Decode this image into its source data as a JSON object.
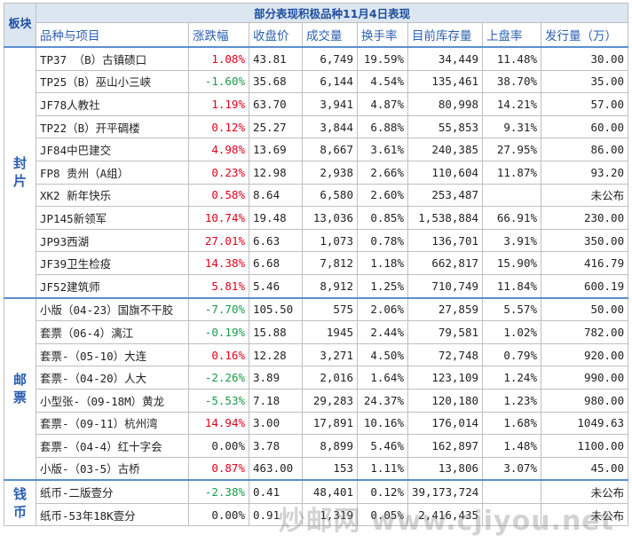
{
  "title": "部分表现积极品种11月4日表现",
  "header": {
    "group": "板块",
    "columns": [
      "品种与项目",
      "涨跌幅",
      "收盘价",
      "成交量",
      "换手率",
      "目前库存量",
      "上盘率",
      "发行量（万）"
    ]
  },
  "groups": [
    {
      "name": "封片",
      "rows": [
        [
          "TP37 （B）古镇碛口",
          "1.08%",
          "43.81",
          "6,749",
          "19.59%",
          "34,449",
          "11.48%",
          "30.00"
        ],
        [
          "TP25（B）巫山小三峡",
          "-1.60%",
          "35.68",
          "6,144",
          "4.54%",
          "135,461",
          "38.70%",
          "35.00"
        ],
        [
          "JF78人教社",
          "1.19%",
          "63.70",
          "3,941",
          "4.87%",
          "80,998",
          "14.21%",
          "57.00"
        ],
        [
          "TP22（B）开平碉楼",
          "0.12%",
          "25.27",
          "3,844",
          "6.88%",
          "55,853",
          "9.31%",
          "60.00"
        ],
        [
          "JF84中巴建交",
          "4.98%",
          "13.69",
          "8,667",
          "3.61%",
          "240,385",
          "27.95%",
          "86.00"
        ],
        [
          "FP8 贵州（A组）",
          "0.23%",
          "12.98",
          "2,938",
          "2.66%",
          "110,604",
          "11.87%",
          "93.20"
        ],
        [
          "XK2 新年快乐",
          "0.58%",
          "8.64",
          "6,580",
          "2.60%",
          "253,487",
          null,
          "未公布"
        ],
        [
          "JP145新领军",
          "10.74%",
          "19.48",
          "13,036",
          "0.85%",
          "1,538,884",
          "66.91%",
          "230.00"
        ],
        [
          "JP93西湖",
          "27.01%",
          "6.63",
          "1,073",
          "0.78%",
          "136,701",
          "3.91%",
          "350.00"
        ],
        [
          "JF39卫生检疫",
          "14.38%",
          "6.68",
          "7,812",
          "1.18%",
          "662,817",
          "15.90%",
          "416.79"
        ],
        [
          "JF52建筑师",
          "5.81%",
          "5.46",
          "8,912",
          "1.25%",
          "710,749",
          "11.84%",
          "600.19"
        ]
      ]
    },
    {
      "name": "邮票",
      "rows": [
        [
          "小版（04-23）国旗不干胶",
          "-7.70%",
          "105.50",
          "575",
          "2.06%",
          "27,859",
          "5.57%",
          "50.00"
        ],
        [
          "套票（06-4）漓江",
          "-0.19%",
          "15.88",
          "1945",
          "2.44%",
          "79,581",
          "1.02%",
          "782.00"
        ],
        [
          "套票-（05-10）大连",
          "0.16%",
          "12.28",
          "3,271",
          "4.50%",
          "72,748",
          "0.79%",
          "920.00"
        ],
        [
          "套票-（04-20）人大",
          "-2.26%",
          "3.89",
          "2,016",
          "1.64%",
          "123,109",
          "1.24%",
          "990.00"
        ],
        [
          "小型张-（09-18M）黄龙",
          "-5.53%",
          "7.18",
          "29,283",
          "24.37%",
          "120,180",
          "1.23%",
          "980.00"
        ],
        [
          "套票-（09-11）杭州湾",
          "14.94%",
          "3.00",
          "17,891",
          "10.16%",
          "176,014",
          "1.68%",
          "1049.63"
        ],
        [
          "套票-（04-4）红十字会",
          "0.00%",
          "3.78",
          "8,899",
          "5.46%",
          "162,897",
          "1.48%",
          "1100.00"
        ],
        [
          "小版-（03-5）古桥",
          "0.87%",
          "463.00",
          "153",
          "1.11%",
          "13,806",
          "3.07%",
          "45.00"
        ]
      ]
    },
    {
      "name": "钱币",
      "rows": [
        [
          "纸币-二版壹分",
          "-2.38%",
          "0.41",
          "48,401",
          "0.12%",
          "39,173,724",
          null,
          "未公布"
        ],
        [
          "纸币-53年18K壹分",
          "0.00%",
          "0.91",
          "1,319",
          "0.05%",
          "2,416,435",
          null,
          "未公布"
        ]
      ]
    }
  ],
  "watermark": "炒邮网 www.cjiyou.net"
}
